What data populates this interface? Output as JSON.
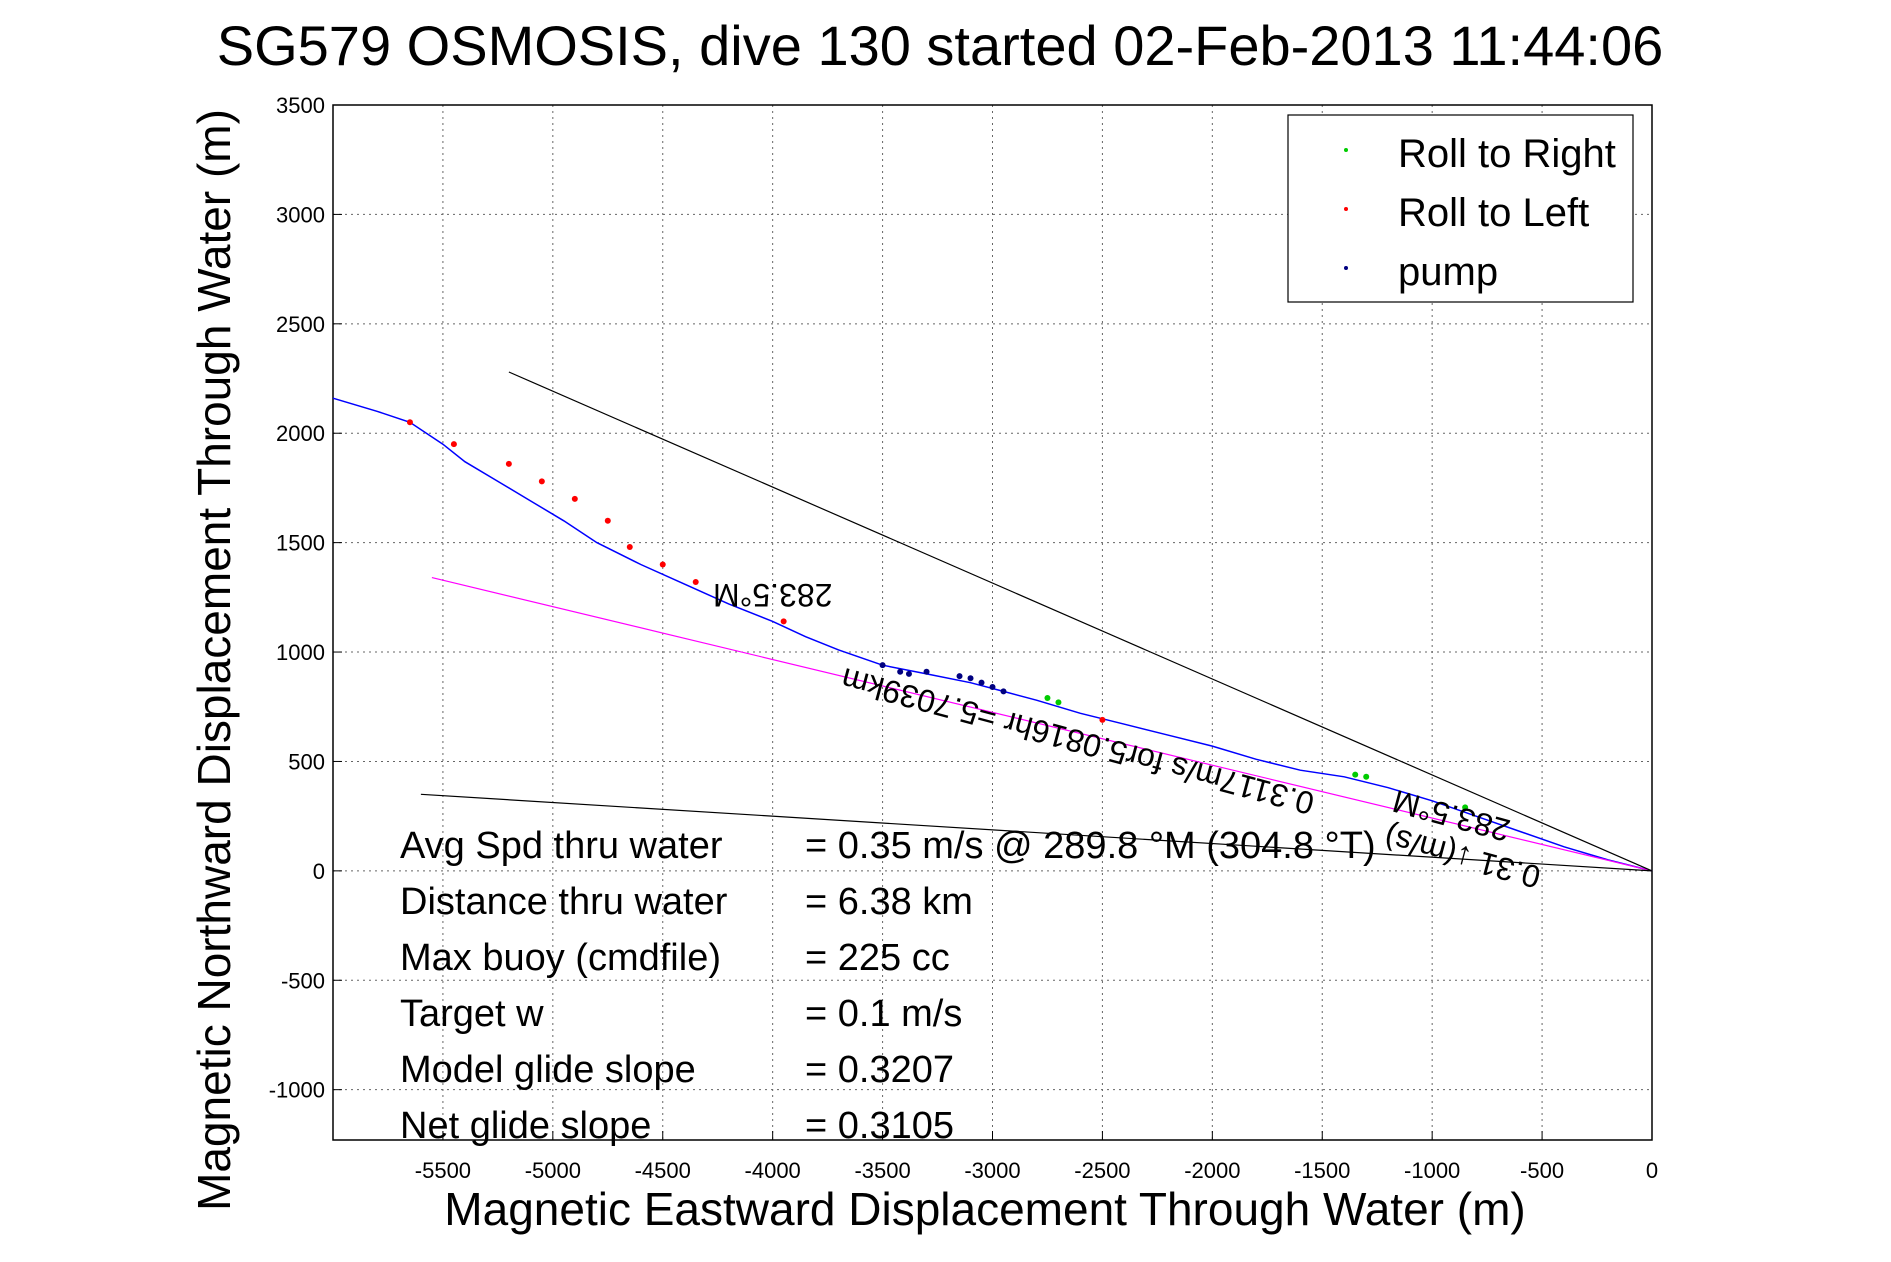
{
  "chart_data": {
    "type": "line",
    "title": "SG579 OSMOSIS, dive 130 started 02-Feb-2013 11:44:06",
    "xlabel": "Magnetic Eastward Displacement Through Water (m)",
    "ylabel": "Magnetic Northward Displacement Through Water (m)",
    "xlim": [
      -6000,
      0
    ],
    "ylim": [
      -1230,
      3500
    ],
    "xticks": [
      -5500,
      -5000,
      -4500,
      -4000,
      -3500,
      -3000,
      -2500,
      -2000,
      -1500,
      -1000,
      -500,
      0
    ],
    "yticks": [
      -1000,
      -500,
      0,
      500,
      1000,
      1500,
      2000,
      2500,
      3000,
      3500
    ],
    "grid": true,
    "legend_position": "top-right",
    "legend": [
      {
        "label": "Roll to Right",
        "color": "#00cc00"
      },
      {
        "label": "Roll to Left",
        "color": "#ff0000"
      },
      {
        "label": "pump",
        "color": "#000080"
      }
    ],
    "series": [
      {
        "type": "line",
        "color": "#0000ff",
        "x": [
          -6000,
          -5800,
          -5650,
          -5500,
          -5400,
          -5250,
          -5100,
          -4950,
          -4800,
          -4600,
          -4400,
          -4200,
          -4000,
          -3850,
          -3700,
          -3500,
          -3300,
          -3100,
          -2950,
          -2800,
          -2600,
          -2400,
          -2200,
          -2000,
          -1800,
          -1600,
          -1400,
          -1200,
          -1000,
          -800,
          -600,
          -400,
          -200,
          0
        ],
        "y": [
          2160,
          2100,
          2050,
          1950,
          1870,
          1780,
          1690,
          1600,
          1500,
          1400,
          1310,
          1220,
          1140,
          1070,
          1010,
          940,
          900,
          860,
          820,
          780,
          720,
          670,
          620,
          570,
          510,
          460,
          430,
          380,
          320,
          250,
          180,
          110,
          50,
          0
        ]
      },
      {
        "type": "line",
        "color": "#ff00ff",
        "x": [
          -5550,
          0
        ],
        "y": [
          1340,
          0
        ]
      },
      {
        "type": "line",
        "color": "#000000",
        "x": [
          -5200,
          0
        ],
        "y": [
          2280,
          0
        ]
      },
      {
        "type": "line",
        "color": "#000000",
        "x": [
          -5600,
          0
        ],
        "y": [
          350,
          0
        ]
      }
    ],
    "roll_right_points": {
      "x": [
        -2750,
        -2700,
        -1350,
        -1300,
        -850
      ],
      "y": [
        790,
        770,
        440,
        430,
        290
      ]
    },
    "roll_left_points": {
      "x": [
        -5650,
        -5450,
        -5200,
        -5050,
        -4900,
        -4750,
        -4650,
        -4500,
        -4350,
        -3950,
        -2500
      ],
      "y": [
        2050,
        1950,
        1860,
        1780,
        1700,
        1600,
        1480,
        1400,
        1320,
        1140,
        690
      ]
    },
    "pump_points": {
      "x": [
        -3500,
        -3420,
        -3380,
        -3300,
        -3150,
        -3100,
        -3050,
        -3000,
        -2950
      ],
      "y": [
        940,
        910,
        900,
        910,
        890,
        880,
        860,
        840,
        820
      ]
    },
    "annotations": [
      {
        "text": "283.5°M",
        "x": -4000,
        "y": 1310,
        "rotation": 180
      },
      {
        "text": "0.3117m/s for5.0816hr =5.7039km",
        "x": -2600,
        "y": 640,
        "rotation": 195
      },
      {
        "text": "283.5°M",
        "x": -900,
        "y": 300,
        "rotation": 195
      },
      {
        "text": "0.31 ↓(m/s)",
        "x": -850,
        "y": 110,
        "rotation": 195
      }
    ]
  },
  "stats": [
    {
      "label": "Avg Spd thru water",
      "value": "=  0.35 m/s @ 289.8 °M (304.8 °T)"
    },
    {
      "label": "Distance thru water",
      "value": "=  6.38 km"
    },
    {
      "label": "Max buoy (cmdfile)",
      "value": "= 225 cc"
    },
    {
      "label": "Target w",
      "value": "= 0.1 m/s"
    },
    {
      "label": "Model glide slope",
      "value": "= 0.3207"
    },
    {
      "label": "Net glide slope",
      "value": "= 0.3105"
    }
  ]
}
